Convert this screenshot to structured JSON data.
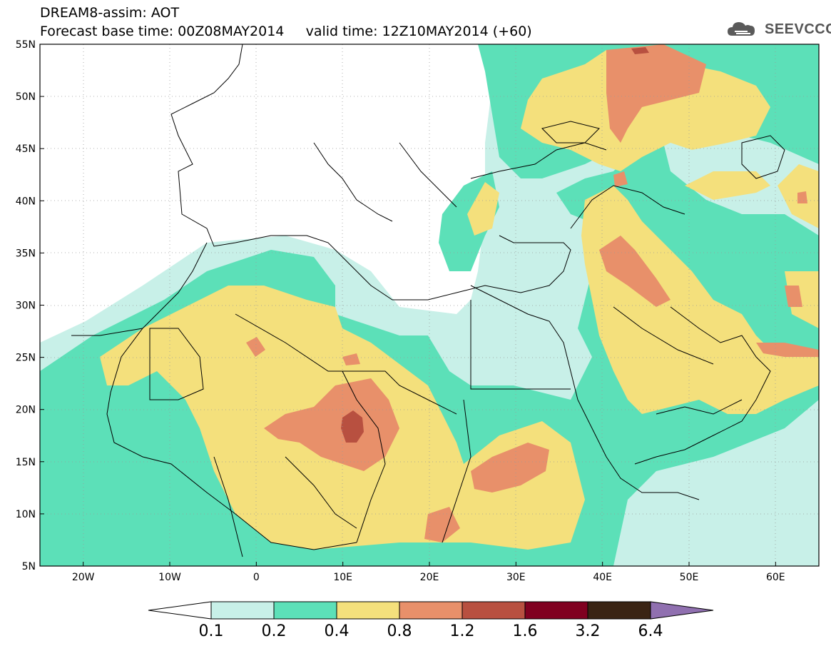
{
  "header": {
    "title_line1": "DREAM8-assim: AOT",
    "base_label": "Forecast base time: 00Z08MAY2014",
    "valid_label": "valid time: 12Z10MAY2014 (+60)",
    "logo_text": "SEEVCCC"
  },
  "map": {
    "lat_labels": [
      "55N",
      "50N",
      "45N",
      "40N",
      "35N",
      "30N",
      "25N",
      "20N",
      "15N",
      "10N",
      "5N"
    ],
    "lon_labels": [
      "20W",
      "10W",
      "0",
      "10E",
      "20E",
      "30E",
      "40E",
      "50E",
      "60E"
    ],
    "lat_range": [
      5,
      55
    ],
    "lon_range": [
      -25,
      65
    ],
    "land_color": "#ffffff",
    "border_color": "#000000"
  },
  "colorbar": {
    "labels": [
      "0.1",
      "0.2",
      "0.4",
      "0.8",
      "1.2",
      "1.6",
      "3.2",
      "6.4"
    ],
    "colors": [
      "#ffffff",
      "#c8f0e8",
      "#5ce0b8",
      "#f4e07c",
      "#e8906a",
      "#b85040",
      "#800020",
      "#3a2414",
      "#9070b0"
    ]
  },
  "levels": {
    "lt_0_1": "#ffffff",
    "0_1_to_0_2": "#c8f0e8",
    "0_2_to_0_4": "#5ce0b8",
    "0_4_to_0_8": "#f4e07c",
    "0_8_to_1_2": "#e8906a",
    "1_2_to_1_6": "#b85040"
  }
}
